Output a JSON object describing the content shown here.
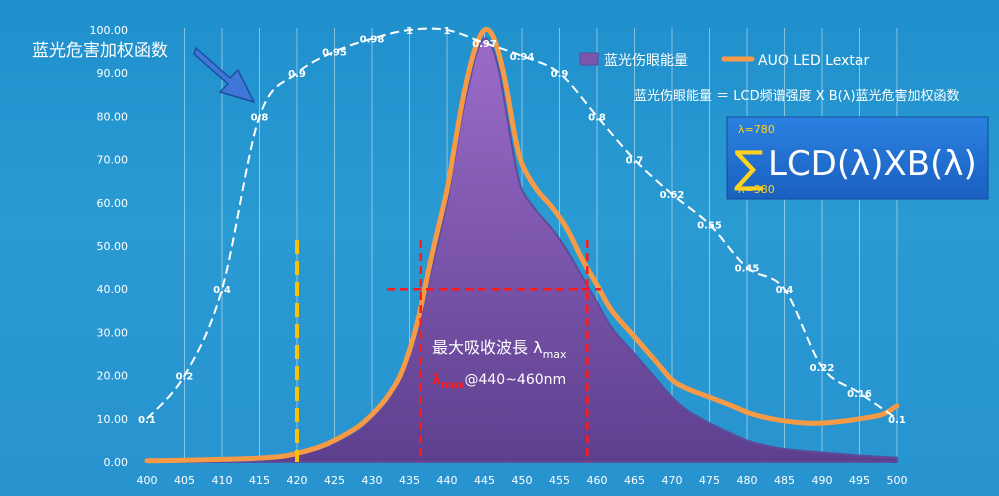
{
  "chart_data": {
    "type": "area",
    "x": [
      400,
      405,
      410,
      415,
      420,
      425,
      430,
      435,
      440,
      445,
      450,
      455,
      460,
      465,
      470,
      475,
      480,
      485,
      490,
      495,
      500
    ],
    "x_ticks": [
      "400",
      "405",
      "410",
      "415",
      "420",
      "425",
      "430",
      "435",
      "440",
      "445",
      "450",
      "455",
      "460",
      "465",
      "470",
      "475",
      "480",
      "485",
      "490",
      "495",
      "500"
    ],
    "y_ticks": [
      "0.00",
      "10.00",
      "20.00",
      "30.00",
      "40.00",
      "50.00",
      "60.00",
      "70.00",
      "80.00",
      "90.00",
      "100.00"
    ],
    "ylim": [
      0,
      100
    ],
    "series": [
      {
        "name": "蓝光伤眼能量",
        "kind": "area",
        "color": "#7b56ab",
        "x": [
          400,
          405,
          410,
          415,
          418,
          420,
          423,
          425,
          428,
          430,
          432,
          434,
          436,
          438,
          440,
          441,
          442,
          443,
          444,
          445,
          446,
          447,
          448,
          449,
          450,
          452,
          454,
          456,
          458,
          460,
          462,
          465,
          468,
          470,
          472,
          475,
          478,
          480,
          482,
          485,
          488,
          490,
          493,
          495,
          498,
          500
        ],
        "values": [
          0,
          0.1,
          0.3,
          0.6,
          1.0,
          1.6,
          3,
          4.5,
          7,
          10,
          14,
          20,
          30,
          45,
          60,
          70,
          80,
          88,
          95,
          98,
          96,
          90,
          80,
          70,
          63,
          58,
          54,
          49,
          43,
          37,
          31,
          25,
          19,
          15,
          12,
          9,
          6.5,
          5,
          4,
          3,
          2.5,
          2.2,
          1.8,
          1.5,
          1.2,
          1
        ]
      },
      {
        "name": "AUO LED Lextar",
        "kind": "line",
        "color": "#f79a46",
        "x": [
          400,
          405,
          410,
          415,
          418,
          420,
          423,
          425,
          428,
          430,
          432,
          434,
          436,
          438,
          440,
          441,
          442,
          443,
          444,
          445,
          446,
          447,
          448,
          449,
          450,
          452,
          454,
          456,
          458,
          460,
          462,
          465,
          468,
          470,
          472,
          475,
          478,
          480,
          482,
          485,
          488,
          490,
          493,
          495,
          498,
          500
        ],
        "values": [
          0.3,
          0.4,
          0.6,
          0.9,
          1.3,
          2,
          3.5,
          5,
          8,
          11,
          15,
          21,
          32,
          48,
          63,
          73,
          83,
          91,
          97,
          100,
          99,
          94,
          86,
          76,
          69,
          63,
          59,
          54,
          47,
          41,
          35,
          29,
          23,
          19,
          17,
          15,
          13,
          11.5,
          10.5,
          9.5,
          9,
          9,
          9.5,
          10,
          11,
          13
        ]
      }
    ],
    "weighting_curve": {
      "name": "蓝光危害加权函数",
      "points": [
        {
          "x": 400,
          "value": 0.1,
          "label": "0.1"
        },
        {
          "x": 405,
          "value": 0.2,
          "label": "0.2"
        },
        {
          "x": 410,
          "value": 0.4,
          "label": "0.4"
        },
        {
          "x": 415,
          "value": 0.8,
          "label": "0.8"
        },
        {
          "x": 420,
          "value": 0.9,
          "label": "0.9"
        },
        {
          "x": 425,
          "value": 0.95,
          "label": "0.95"
        },
        {
          "x": 430,
          "value": 0.98,
          "label": "0.98"
        },
        {
          "x": 435,
          "value": 1,
          "label": "1"
        },
        {
          "x": 440,
          "value": 1,
          "label": "1"
        },
        {
          "x": 445,
          "value": 0.97,
          "label": "0.97"
        },
        {
          "x": 450,
          "value": 0.94,
          "label": "0.94"
        },
        {
          "x": 455,
          "value": 0.9,
          "label": "0.9"
        },
        {
          "x": 460,
          "value": 0.8,
          "label": "0.8"
        },
        {
          "x": 465,
          "value": 0.7,
          "label": "0.7"
        },
        {
          "x": 470,
          "value": 0.62,
          "label": "0.62"
        },
        {
          "x": 475,
          "value": 0.55,
          "label": "0.55"
        },
        {
          "x": 480,
          "value": 0.45,
          "label": "0.45"
        },
        {
          "x": 485,
          "value": 0.4,
          "label": "0.4"
        },
        {
          "x": 490,
          "value": 0.22,
          "label": "0.22"
        },
        {
          "x": 495,
          "value": 0.16,
          "label": "0.16"
        },
        {
          "x": 500,
          "value": 0.1,
          "label": "0.1"
        }
      ]
    },
    "markers": {
      "yellow_dashed_x": 420,
      "red_dashed_x": [
        436.5,
        458.7
      ],
      "red_dashed_y": 40,
      "red_dashed_y_span": [
        432,
        460.5
      ]
    },
    "legend": [
      {
        "label": "蓝光伤眼能量",
        "color": "#7b56ab",
        "kind": "area"
      },
      {
        "label": "AUO LED Lextar",
        "color": "#f79a46",
        "kind": "line"
      }
    ],
    "legend_position": "top-right"
  },
  "annotations": {
    "weighting_title": "蓝光危害加权函数",
    "formula": "蓝光伤眼能量 ＝ LCD频谱强度 X B(λ)蓝光危害加权函数",
    "sum_upper": "λ=780",
    "sum_lower": "λ=380",
    "sum_symbol": "∑",
    "sum_expression": "LCD(λ)XB(λ)",
    "max_absorb_label": "最大吸收波長 λ",
    "max_subscript": "max",
    "range_lambda": "λ",
    "range_subscript": "max",
    "range_text": "@440~460nm"
  },
  "colors": {
    "background": "#2596d0",
    "area_fill": "#7b56ab",
    "orange_line": "#f79a46",
    "white_dash": "#ffffff",
    "yellow_dash": "#ffc000",
    "red_dash": "#ff1a1a",
    "box_fill": "#1f6fd0"
  }
}
